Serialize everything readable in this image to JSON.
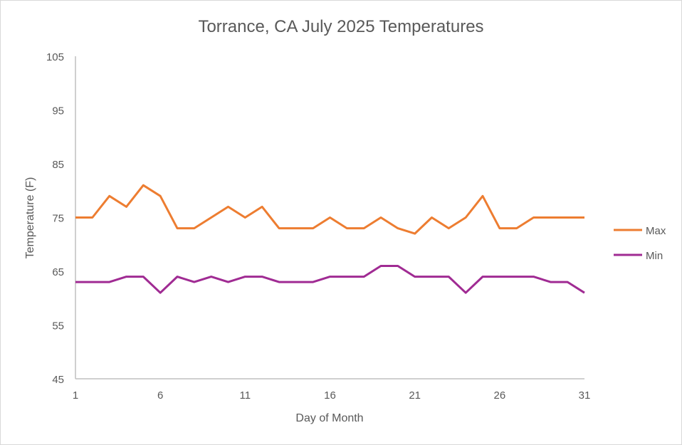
{
  "chart_data": {
    "type": "line",
    "title": "Torrance, CA July 2025 Temperatures",
    "xlabel": "Day of Month",
    "ylabel": "Temperature (F)",
    "xlim": [
      1,
      31
    ],
    "ylim": [
      45,
      105
    ],
    "x_ticks": [
      1,
      6,
      11,
      16,
      21,
      26,
      31
    ],
    "y_ticks": [
      45,
      55,
      65,
      75,
      85,
      95,
      105
    ],
    "grid": false,
    "legend_position": "right",
    "x": [
      1,
      2,
      3,
      4,
      5,
      6,
      7,
      8,
      9,
      10,
      11,
      12,
      13,
      14,
      15,
      16,
      17,
      18,
      19,
      20,
      21,
      22,
      23,
      24,
      25,
      26,
      27,
      28,
      29,
      30,
      31
    ],
    "series": [
      {
        "name": "Max",
        "color": "#ED7D31",
        "values": [
          75,
          75,
          79,
          77,
          81,
          79,
          73,
          73,
          75,
          77,
          75,
          77,
          73,
          73,
          73,
          75,
          73,
          73,
          75,
          73,
          72,
          75,
          73,
          75,
          79,
          73,
          73,
          75,
          75,
          75,
          75
        ]
      },
      {
        "name": "Min",
        "color": "#A02B93",
        "values": [
          63,
          63,
          63,
          64,
          64,
          61,
          64,
          63,
          64,
          63,
          64,
          64,
          63,
          63,
          63,
          64,
          64,
          64,
          66,
          66,
          64,
          64,
          64,
          61,
          64,
          64,
          64,
          64,
          63,
          63,
          61
        ]
      }
    ]
  }
}
